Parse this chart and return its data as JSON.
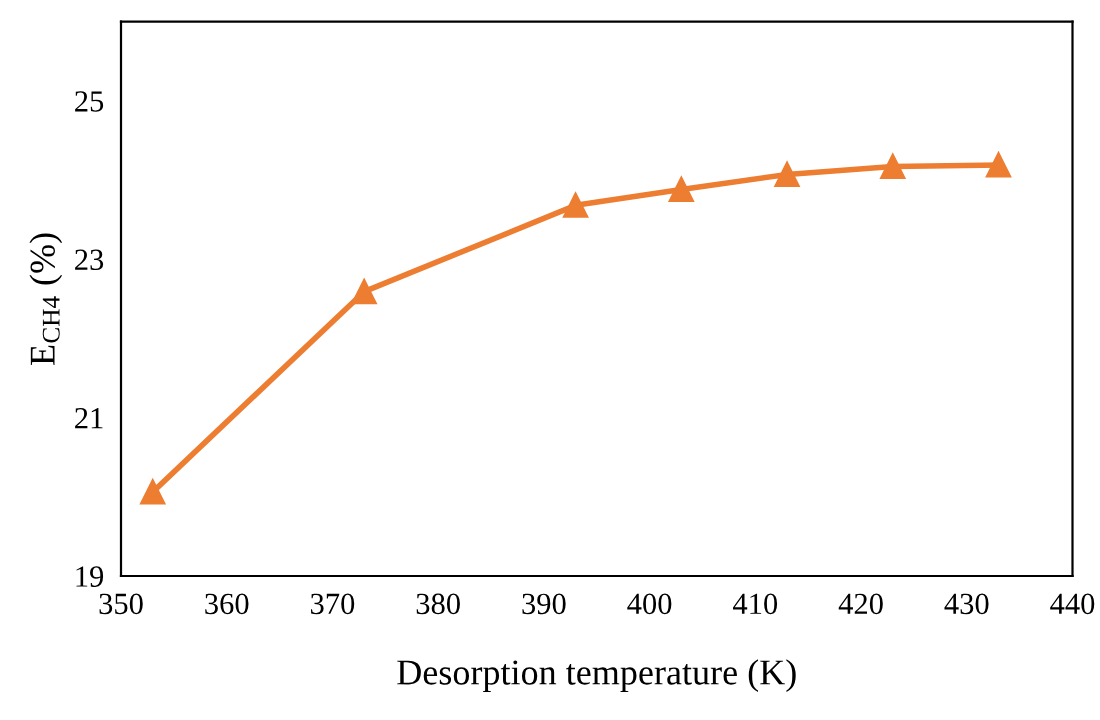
{
  "chart_data": {
    "type": "line",
    "xlabel": "Desorption temperature (K)",
    "ylabel": "E$_{CH4}$ (%)",
    "x": [
      353,
      373,
      393,
      403,
      413,
      423,
      433
    ],
    "series": [
      {
        "color": "#ed7d31",
        "values": [
          20.06,
          22.59,
          23.68,
          23.88,
          24.07,
          24.17,
          24.19
        ]
      }
    ],
    "xlim": [
      350,
      440
    ],
    "xticks": [
      350,
      360,
      370,
      380,
      390,
      400,
      410,
      420,
      430,
      440
    ],
    "ylim": [
      19,
      26
    ],
    "yticks": [
      19,
      21,
      23,
      25
    ],
    "marker": "triangle",
    "line_style": "solid",
    "grid": false,
    "legend": false
  }
}
